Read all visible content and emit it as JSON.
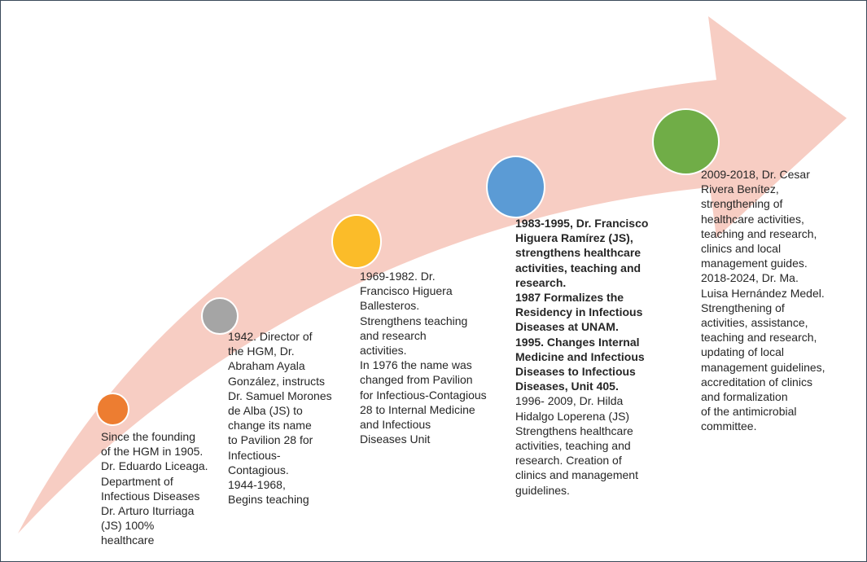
{
  "colors": {
    "arrow_fill": "#f7cdc3",
    "border": "#3a4a5a",
    "text": "#262626"
  },
  "milestones": [
    {
      "node_color": "#ed7d31",
      "lines": [
        {
          "text": "Since the founding",
          "bold": false
        },
        {
          "text": "of the HGM in 1905.",
          "bold": false
        },
        {
          "text": "Dr. Eduardo Liceaga.",
          "bold": false
        },
        {
          "text": "Department of",
          "bold": false
        },
        {
          "text": "Infectious Diseases",
          "bold": false
        },
        {
          "text": "Dr. Arturo Iturriaga",
          "bold": false
        },
        {
          "text": "(JS) 100%",
          "bold": false
        },
        {
          "text": "healthcare",
          "bold": false
        }
      ]
    },
    {
      "node_color": "#a5a5a5",
      "lines": [
        {
          "text": "1942. Director of",
          "bold": false
        },
        {
          "text": "the HGM, Dr.",
          "bold": false
        },
        {
          "text": "Abraham Ayala",
          "bold": false
        },
        {
          "text": "González, instructs",
          "bold": false
        },
        {
          "text": "Dr. Samuel Morones",
          "bold": false
        },
        {
          "text": "de Alba (JS) to",
          "bold": false
        },
        {
          "text": "change its name",
          "bold": false
        },
        {
          "text": "to Pavilion 28 for",
          "bold": false
        },
        {
          "text": "Infectious-",
          "bold": false
        },
        {
          "text": "Contagious.",
          "bold": false
        },
        {
          "text": "1944-1968,",
          "bold": false
        },
        {
          "text": "Begins teaching",
          "bold": false
        }
      ]
    },
    {
      "node_color": "#fbbc29",
      "lines": [
        {
          "text": "1969-1982. Dr.",
          "bold": false
        },
        {
          "text": "Francisco Higuera",
          "bold": false
        },
        {
          "text": "Ballesteros.",
          "bold": false
        },
        {
          "text": "Strengthens teaching",
          "bold": false
        },
        {
          "text": "and research",
          "bold": false
        },
        {
          "text": "activities.",
          "bold": false
        },
        {
          "text": "In 1976 the name was",
          "bold": false
        },
        {
          "text": "changed from Pavilion",
          "bold": false
        },
        {
          "text": "for Infectious-Contagious",
          "bold": false
        },
        {
          "text": "28 to Internal Medicine",
          "bold": false
        },
        {
          "text": "and Infectious",
          "bold": false
        },
        {
          "text": "Diseases Unit",
          "bold": false
        }
      ]
    },
    {
      "node_color": "#5b9bd5",
      "lines": [
        {
          "text": "1983-1995, Dr. Francisco",
          "bold": true
        },
        {
          "text": "Higuera Ramírez (JS),",
          "bold": true
        },
        {
          "text": "strengthens healthcare",
          "bold": true
        },
        {
          "text": "activities, teaching and",
          "bold": true
        },
        {
          "text": "research.",
          "bold": true
        },
        {
          "text": "1987 Formalizes the",
          "bold": true
        },
        {
          "text": "Residency in Infectious",
          "bold": true
        },
        {
          "text": "Diseases at UNAM.",
          "bold": true
        },
        {
          "text": "1995. Changes Internal",
          "bold": true
        },
        {
          "text": "Medicine and Infectious",
          "bold": true
        },
        {
          "text": "Diseases to Infectious",
          "bold": true
        },
        {
          "text": "Diseases, Unit 405.",
          "bold": true
        },
        {
          "text": "1996- 2009, Dr. Hilda",
          "bold": false
        },
        {
          "text": "Hidalgo Loperena (JS)",
          "bold": false
        },
        {
          "text": "Strengthens healthcare",
          "bold": false
        },
        {
          "text": "activities, teaching and",
          "bold": false
        },
        {
          "text": "research. Creation of",
          "bold": false
        },
        {
          "text": "clinics and management",
          "bold": false
        },
        {
          "text": "guidelines.",
          "bold": false
        }
      ]
    },
    {
      "node_color": "#70ad47",
      "lines": [
        {
          "text": "2009-2018, Dr. Cesar",
          "bold": false
        },
        {
          "text": "Rivera Benítez,",
          "bold": false
        },
        {
          "text": "strengthening of",
          "bold": false
        },
        {
          "text": "healthcare activities,",
          "bold": false
        },
        {
          "text": "teaching and research,",
          "bold": false
        },
        {
          "text": "clinics and local",
          "bold": false
        },
        {
          "text": "management guides.",
          "bold": false
        },
        {
          "text": "2018-2024, Dr. Ma.",
          "bold": false
        },
        {
          "text": "Luisa Hernández Medel.",
          "bold": false
        },
        {
          "text": "Strengthening of",
          "bold": false
        },
        {
          "text": "activities, assistance,",
          "bold": false
        },
        {
          "text": "teaching and research,",
          "bold": false
        },
        {
          "text": "updating of local",
          "bold": false
        },
        {
          "text": "management guidelines,",
          "bold": false
        },
        {
          "text": "accreditation of clinics",
          "bold": false
        },
        {
          "text": "and formalization",
          "bold": false
        },
        {
          "text": "of the antimicrobial",
          "bold": false
        },
        {
          "text": "committee.",
          "bold": false
        }
      ]
    }
  ]
}
